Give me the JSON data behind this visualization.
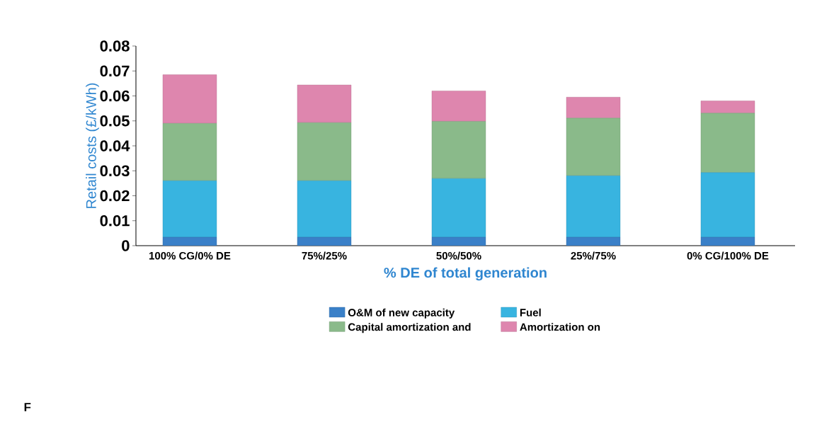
{
  "chart_data": {
    "type": "bar",
    "stacked": true,
    "categories": [
      "100% CG/0% DE",
      "75%/25%",
      "50%/50%",
      "25%/75%",
      "0% CG/100% DE"
    ],
    "series": [
      {
        "name": "O&M of new capacity",
        "color": "#3a80c8",
        "values": [
          0.0034,
          0.0034,
          0.0034,
          0.0034,
          0.0034
        ]
      },
      {
        "name": "Fuel",
        "color": "#38b4e0",
        "values": [
          0.0226,
          0.0226,
          0.0235,
          0.0246,
          0.0259
        ]
      },
      {
        "name": "Capital amortization and",
        "color": "#8aba8a",
        "values": [
          0.023,
          0.0233,
          0.0229,
          0.0231,
          0.0238
        ]
      },
      {
        "name": "Amortization on",
        "color": "#de86ae",
        "values": [
          0.0195,
          0.0151,
          0.0122,
          0.0084,
          0.0049
        ]
      }
    ],
    "ylim": [
      0,
      0.08
    ],
    "yticks": [
      0,
      0.01,
      0.02,
      0.03,
      0.04,
      0.05,
      0.06,
      0.07,
      0.08
    ],
    "xlabel": "% DE of total generation",
    "ylabel": "Retail costs (£/kWh)",
    "legend": "bottom",
    "annotations": [
      "F"
    ]
  }
}
